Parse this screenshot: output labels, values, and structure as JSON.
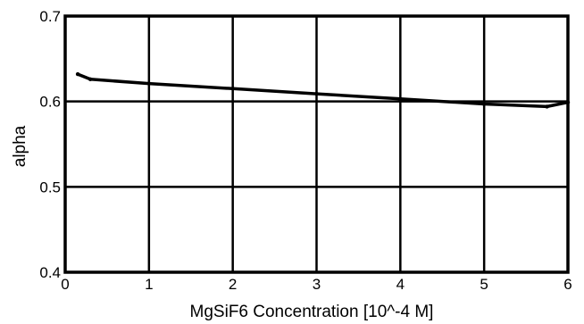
{
  "chart_data": {
    "type": "line",
    "title": "",
    "xlabel": "MgSiF6 Concentration [10^-4  M]",
    "ylabel": "alpha",
    "xlim": [
      0,
      6
    ],
    "ylim": [
      0.4,
      0.7
    ],
    "xticks": [
      0,
      1,
      2,
      3,
      4,
      5,
      6
    ],
    "yticks": [
      0.4,
      0.5,
      0.6,
      0.7
    ],
    "xtick_labels": [
      "0",
      "1",
      "2",
      "3",
      "4",
      "5",
      "6"
    ],
    "ytick_labels": [
      "0.4",
      "0.5",
      "0.6",
      "0.7"
    ],
    "grid": true,
    "legend": "none",
    "series": [
      {
        "x": [
          0.15,
          0.3,
          1.0,
          2.0,
          3.0,
          4.0,
          5.0,
          5.75,
          6.0
        ],
        "y": [
          0.632,
          0.626,
          0.621,
          0.615,
          0.609,
          0.603,
          0.597,
          0.594,
          0.599
        ],
        "color": "#000000"
      }
    ]
  }
}
